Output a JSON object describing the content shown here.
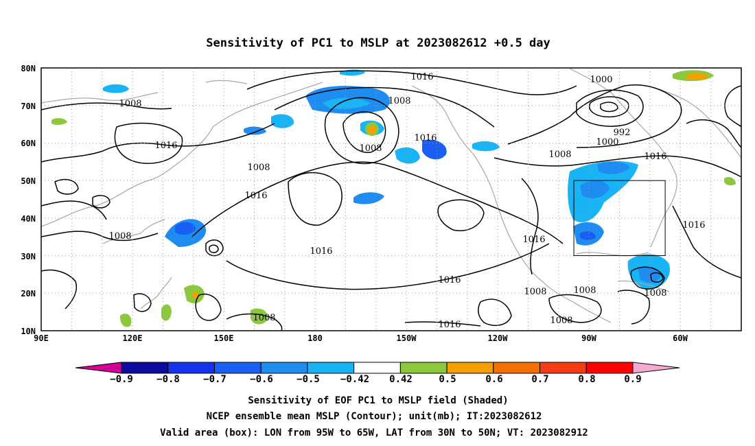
{
  "title": "Sensitivity of PC1 to MSLP at 2023082612 +0.5 day",
  "map": {
    "lat_ticks": [
      "80N",
      "70N",
      "60N",
      "50N",
      "40N",
      "30N",
      "20N",
      "10N"
    ],
    "lon_ticks": [
      "90E",
      "120E",
      "150E",
      "180",
      "150W",
      "120W",
      "90W",
      "60W"
    ],
    "lon_range_deg_east": [
      90,
      320
    ],
    "lat_range": [
      10,
      80
    ],
    "grid": "dotted",
    "colors": {
      "coast": "#a6a6a6",
      "contour": "#000000",
      "box": "#000000"
    }
  },
  "contour_labels": [
    "1016",
    "1008",
    "1000",
    "992",
    "1008",
    "1016",
    "1008",
    "1016",
    "1008",
    "1016",
    "1016",
    "1016",
    "1008",
    "1016",
    "1008",
    "1008",
    "1008",
    "1008",
    "1008",
    "1016",
    "1000",
    "1008",
    "1016",
    "1016"
  ],
  "valid_box": {
    "lon": [
      -95,
      -65
    ],
    "lat": [
      30,
      50
    ]
  },
  "colorbar": {
    "labels": [
      "−0.9",
      "−0.8",
      "−0.7",
      "−0.6",
      "−0.5",
      "−0.42",
      "0.42",
      "0.5",
      "0.6",
      "0.7",
      "0.8",
      "0.9"
    ],
    "colors": [
      "#0b0b9f",
      "#1632ec",
      "#1a5ff5",
      "#1e8cf0",
      "#18b4f5",
      "#ffffff",
      "#8cc83c",
      "#f5a000",
      "#f56e00",
      "#f53c14",
      "#ff0000"
    ],
    "end_low": "#d20096",
    "end_high": "#f5aad2"
  },
  "caption": {
    "line1": "Sensitivity of EOF PC1 to MSLP field (Shaded)",
    "line2": "NCEP ensemble mean MSLP (Contour); unit(mb); IT:2023082612",
    "line3": "Valid area (box): LON from 95W to 65W, LAT from 30N to 50N; VT: 2023082912"
  }
}
